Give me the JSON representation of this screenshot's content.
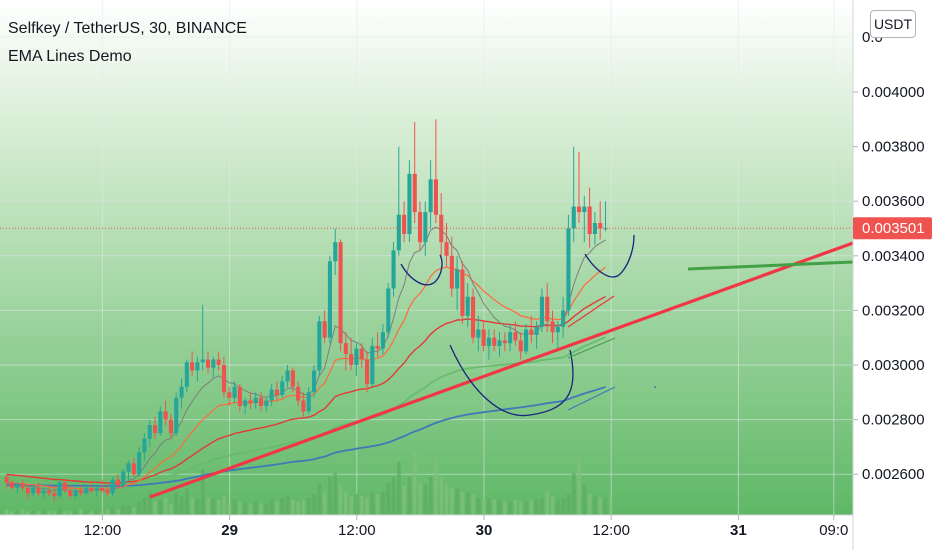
{
  "header": {
    "symbol": "Selfkey / TetherUS, 30, BINANCE",
    "indicator": "EMA Lines Demo"
  },
  "currency_button": "USDT",
  "chart_data": {
    "type": "candlestick",
    "price_ticks": [
      "0.004000",
      "0.003800",
      "0.003600",
      "0.003400",
      "0.003200",
      "0.003000",
      "0.002800",
      "0.002600"
    ],
    "price_ticks_values": [
      0.004,
      0.0038,
      0.0036,
      0.0034,
      0.0032,
      0.003,
      0.0028,
      0.0026
    ],
    "partial_top_tick": "0.0",
    "time_ticks": [
      {
        "label": "12:00",
        "bold": false,
        "t": 18
      },
      {
        "label": "29",
        "bold": true,
        "t": 42
      },
      {
        "label": "12:00",
        "bold": false,
        "t": 66
      },
      {
        "label": "30",
        "bold": true,
        "t": 90
      },
      {
        "label": "12:00",
        "bold": false,
        "t": 114
      },
      {
        "label": "31",
        "bold": true,
        "t": 138
      },
      {
        "label": "09:0",
        "bold": false,
        "t": 156
      }
    ],
    "last_price": 0.003501,
    "last_price_label": "0.003501",
    "colors": {
      "bg_top": "#ffffff",
      "bg_bottom": "#66bb6a",
      "up": "#26a69a",
      "down": "#ef5350",
      "ema_fast": "#7e7e7e",
      "ema_1": "#ff6a3d",
      "ema_2": "#e53935",
      "ema_3": "#66bb6a",
      "ema_4": "#3f79b8",
      "trendline": "#f23645",
      "arc": "#1a237e",
      "green_line": "#43a047"
    },
    "candles": [
      [
        0.00259,
        0.0026,
        0.00255,
        0.00257
      ],
      [
        0.00257,
        0.00258,
        0.00254,
        0.00255
      ],
      [
        0.00255,
        0.00257,
        0.00253,
        0.00256
      ],
      [
        0.00256,
        0.00258,
        0.00254,
        0.00255
      ],
      [
        0.00255,
        0.00256,
        0.00251,
        0.00253
      ],
      [
        0.00253,
        0.00256,
        0.00252,
        0.00255
      ],
      [
        0.00255,
        0.00257,
        0.00252,
        0.00253
      ],
      [
        0.00253,
        0.00255,
        0.00251,
        0.00254
      ],
      [
        0.00254,
        0.00256,
        0.00252,
        0.00253
      ],
      [
        0.00253,
        0.00255,
        0.0025,
        0.00252
      ],
      [
        0.00252,
        0.00258,
        0.00251,
        0.00257
      ],
      [
        0.00257,
        0.00258,
        0.00253,
        0.00254
      ],
      [
        0.00254,
        0.00256,
        0.00251,
        0.00252
      ],
      [
        0.00252,
        0.00255,
        0.00251,
        0.00254
      ],
      [
        0.00254,
        0.00256,
        0.00252,
        0.00253
      ],
      [
        0.00253,
        0.00256,
        0.00252,
        0.00255
      ],
      [
        0.00255,
        0.00257,
        0.00253,
        0.00254
      ],
      [
        0.00254,
        0.00256,
        0.00252,
        0.00255
      ],
      [
        0.00255,
        0.00258,
        0.00253,
        0.00254
      ],
      [
        0.00254,
        0.00256,
        0.00252,
        0.00253
      ],
      [
        0.00253,
        0.00259,
        0.00252,
        0.00258
      ],
      [
        0.00258,
        0.0026,
        0.00255,
        0.00256
      ],
      [
        0.00256,
        0.00262,
        0.00255,
        0.00261
      ],
      [
        0.00261,
        0.00265,
        0.00258,
        0.00264
      ],
      [
        0.00264,
        0.00266,
        0.00259,
        0.0026
      ],
      [
        0.0026,
        0.0027,
        0.00259,
        0.00268
      ],
      [
        0.00268,
        0.00275,
        0.00265,
        0.00273
      ],
      [
        0.00273,
        0.0028,
        0.0027,
        0.00278
      ],
      [
        0.00278,
        0.00281,
        0.00273,
        0.00275
      ],
      [
        0.00275,
        0.00285,
        0.00274,
        0.00283
      ],
      [
        0.00283,
        0.00287,
        0.00278,
        0.0028
      ],
      [
        0.0028,
        0.00282,
        0.00273,
        0.00275
      ],
      [
        0.00275,
        0.0029,
        0.00274,
        0.00288
      ],
      [
        0.00288,
        0.00295,
        0.00284,
        0.00292
      ],
      [
        0.00292,
        0.00302,
        0.0029,
        0.00301
      ],
      [
        0.00301,
        0.00305,
        0.00296,
        0.00298
      ],
      [
        0.00298,
        0.00303,
        0.00294,
        0.00301
      ],
      [
        0.00301,
        0.00322,
        0.00298,
        0.00302
      ],
      [
        0.00302,
        0.00305,
        0.00297,
        0.00299
      ],
      [
        0.00299,
        0.00303,
        0.00295,
        0.00302
      ],
      [
        0.00302,
        0.00305,
        0.00298,
        0.003
      ],
      [
        0.003,
        0.00303,
        0.00288,
        0.0029
      ],
      [
        0.0029,
        0.00292,
        0.00285,
        0.00288
      ],
      [
        0.00288,
        0.00294,
        0.00286,
        0.00292
      ],
      [
        0.00292,
        0.00293,
        0.00283,
        0.00285
      ],
      [
        0.00285,
        0.00288,
        0.00282,
        0.00287
      ],
      [
        0.00287,
        0.0029,
        0.00284,
        0.00286
      ],
      [
        0.00286,
        0.0029,
        0.00284,
        0.00288
      ],
      [
        0.00288,
        0.0029,
        0.00283,
        0.00285
      ],
      [
        0.00285,
        0.00288,
        0.00283,
        0.00287
      ],
      [
        0.00287,
        0.00293,
        0.00285,
        0.00291
      ],
      [
        0.00291,
        0.00294,
        0.00287,
        0.00289
      ],
      [
        0.00289,
        0.00296,
        0.00288,
        0.00294
      ],
      [
        0.00294,
        0.003,
        0.00292,
        0.00298
      ],
      [
        0.00298,
        0.00299,
        0.0029,
        0.00292
      ],
      [
        0.00292,
        0.00294,
        0.00285,
        0.00287
      ],
      [
        0.00287,
        0.0029,
        0.00281,
        0.00283
      ],
      [
        0.00283,
        0.00292,
        0.00282,
        0.0029
      ],
      [
        0.0029,
        0.003,
        0.00288,
        0.00298
      ],
      [
        0.00298,
        0.00318,
        0.00296,
        0.00316
      ],
      [
        0.00316,
        0.0032,
        0.00308,
        0.0031
      ],
      [
        0.0031,
        0.0034,
        0.00308,
        0.00338
      ],
      [
        0.00338,
        0.0035,
        0.00333,
        0.00345
      ],
      [
        0.00345,
        0.00346,
        0.00305,
        0.00308
      ],
      [
        0.00308,
        0.00312,
        0.00298,
        0.00304
      ],
      [
        0.00304,
        0.0031,
        0.00298,
        0.003
      ],
      [
        0.003,
        0.00308,
        0.00296,
        0.00306
      ],
      [
        0.00306,
        0.00308,
        0.00299,
        0.00302
      ],
      [
        0.00302,
        0.00305,
        0.0029,
        0.00293
      ],
      [
        0.00293,
        0.0031,
        0.00292,
        0.00307
      ],
      [
        0.00307,
        0.00312,
        0.00303,
        0.00306
      ],
      [
        0.00306,
        0.00315,
        0.00304,
        0.00312
      ],
      [
        0.00312,
        0.0033,
        0.0031,
        0.00328
      ],
      [
        0.00328,
        0.00345,
        0.00325,
        0.00342
      ],
      [
        0.00342,
        0.0038,
        0.0034,
        0.00355
      ],
      [
        0.00355,
        0.0036,
        0.00345,
        0.00348
      ],
      [
        0.00348,
        0.00375,
        0.00345,
        0.0037
      ],
      [
        0.0037,
        0.00389,
        0.00352,
        0.00356
      ],
      [
        0.00356,
        0.0036,
        0.00342,
        0.00345
      ],
      [
        0.00345,
        0.0036,
        0.0034,
        0.00356
      ],
      [
        0.00356,
        0.00375,
        0.0035,
        0.00368
      ],
      [
        0.00368,
        0.0039,
        0.00352,
        0.00355
      ],
      [
        0.00355,
        0.00363,
        0.0034,
        0.00345
      ],
      [
        0.00345,
        0.00352,
        0.00336,
        0.0034
      ],
      [
        0.0034,
        0.00347,
        0.00325,
        0.00328
      ],
      [
        0.00328,
        0.0034,
        0.0032,
        0.00335
      ],
      [
        0.00335,
        0.00338,
        0.00315,
        0.00318
      ],
      [
        0.00318,
        0.0033,
        0.00314,
        0.00325
      ],
      [
        0.00325,
        0.00328,
        0.00308,
        0.0031
      ],
      [
        0.0031,
        0.00318,
        0.00305,
        0.00313
      ],
      [
        0.00313,
        0.00316,
        0.00305,
        0.00307
      ],
      [
        0.00307,
        0.00313,
        0.00302,
        0.0031
      ],
      [
        0.0031,
        0.00313,
        0.00305,
        0.00307
      ],
      [
        0.00307,
        0.00312,
        0.00303,
        0.00309
      ],
      [
        0.00309,
        0.00312,
        0.00305,
        0.00308
      ],
      [
        0.00308,
        0.00315,
        0.00305,
        0.00312
      ],
      [
        0.00312,
        0.00316,
        0.00307,
        0.00309
      ],
      [
        0.00309,
        0.00312,
        0.00302,
        0.00305
      ],
      [
        0.00305,
        0.00315,
        0.00304,
        0.00313
      ],
      [
        0.00313,
        0.00318,
        0.00308,
        0.00311
      ],
      [
        0.00311,
        0.00316,
        0.00306,
        0.00314
      ],
      [
        0.00314,
        0.00328,
        0.00312,
        0.00325
      ],
      [
        0.00325,
        0.0033,
        0.00312,
        0.00316
      ],
      [
        0.00316,
        0.0032,
        0.00308,
        0.00312
      ],
      [
        0.00312,
        0.00316,
        0.00305,
        0.00314
      ],
      [
        0.00314,
        0.00325,
        0.0031,
        0.0032
      ],
      [
        0.0032,
        0.00355,
        0.00318,
        0.0035
      ],
      [
        0.0035,
        0.0038,
        0.00345,
        0.00358
      ],
      [
        0.00358,
        0.00378,
        0.00352,
        0.00356
      ],
      [
        0.00356,
        0.00362,
        0.00345,
        0.00358
      ],
      [
        0.00358,
        0.00365,
        0.00343,
        0.00348
      ],
      [
        0.00348,
        0.00356,
        0.00344,
        0.00352
      ],
      [
        0.00352,
        0.0036,
        0.00346,
        0.0035
      ],
      [
        0.0035,
        0.0036,
        0.00349,
        0.003501
      ]
    ],
    "volumes": [
      3,
      2,
      2,
      3,
      2,
      2,
      2,
      3,
      2,
      2,
      4,
      2,
      2,
      2,
      3,
      2,
      2,
      2,
      2,
      3,
      4,
      3,
      5,
      5,
      4,
      7,
      9,
      12,
      7,
      8,
      9,
      6,
      12,
      10,
      14,
      9,
      8,
      24,
      9,
      9,
      8,
      10,
      7,
      8,
      7,
      6,
      6,
      7,
      6,
      6,
      8,
      7,
      9,
      10,
      8,
      7,
      8,
      9,
      11,
      17,
      12,
      20,
      22,
      16,
      12,
      10,
      11,
      10,
      9,
      12,
      11,
      12,
      17,
      20,
      28,
      15,
      20,
      33,
      17,
      16,
      20,
      30,
      20,
      16,
      14,
      14,
      12,
      12,
      11,
      9,
      9,
      9,
      8,
      8,
      7,
      7,
      8,
      7,
      7,
      8,
      8,
      9,
      12,
      10,
      8,
      9,
      11,
      22,
      30,
      16,
      11,
      10,
      9,
      9,
      8
    ]
  }
}
